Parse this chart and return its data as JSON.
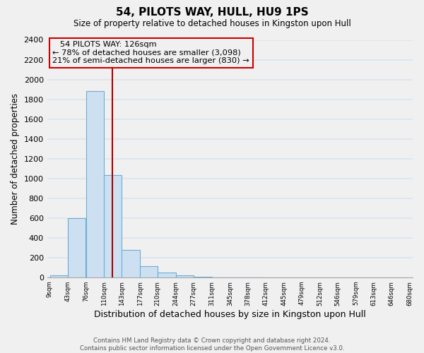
{
  "title": "54, PILOTS WAY, HULL, HU9 1PS",
  "subtitle": "Size of property relative to detached houses in Kingston upon Hull",
  "xlabel": "Distribution of detached houses by size in Kingston upon Hull",
  "ylabel": "Number of detached properties",
  "bar_left_edges": [
    9,
    43,
    76,
    110,
    143,
    177,
    210,
    244,
    277,
    311,
    345,
    378,
    412,
    445,
    479,
    512,
    546,
    579,
    613,
    646
  ],
  "bar_widths": [
    34,
    33,
    34,
    33,
    34,
    33,
    34,
    33,
    34,
    34,
    33,
    34,
    33,
    34,
    33,
    34,
    33,
    34,
    33,
    34
  ],
  "bar_heights": [
    20,
    600,
    1880,
    1030,
    280,
    115,
    50,
    20,
    5,
    2,
    1,
    1,
    0,
    0,
    0,
    0,
    0,
    0,
    0,
    0
  ],
  "bar_color": "#cde0f2",
  "bar_edge_color": "#6aaed6",
  "tick_labels": [
    "9sqm",
    "43sqm",
    "76sqm",
    "110sqm",
    "143sqm",
    "177sqm",
    "210sqm",
    "244sqm",
    "277sqm",
    "311sqm",
    "345sqm",
    "378sqm",
    "412sqm",
    "445sqm",
    "479sqm",
    "512sqm",
    "546sqm",
    "579sqm",
    "613sqm",
    "646sqm",
    "680sqm"
  ],
  "ylim": [
    0,
    2400
  ],
  "yticks": [
    0,
    200,
    400,
    600,
    800,
    1000,
    1200,
    1400,
    1600,
    1800,
    2000,
    2200,
    2400
  ],
  "vline_x": 126,
  "vline_color": "#aa0000",
  "annotation_title": "54 PILOTS WAY: 126sqm",
  "annotation_line1": "← 78% of detached houses are smaller (3,098)",
  "annotation_line2": "21% of semi-detached houses are larger (830) →",
  "annotation_box_color": "#cc0000",
  "background_color": "#f0f0f0",
  "grid_color": "#d8e4f0",
  "footer_line1": "Contains HM Land Registry data © Crown copyright and database right 2024.",
  "footer_line2": "Contains public sector information licensed under the Open Government Licence v3.0."
}
